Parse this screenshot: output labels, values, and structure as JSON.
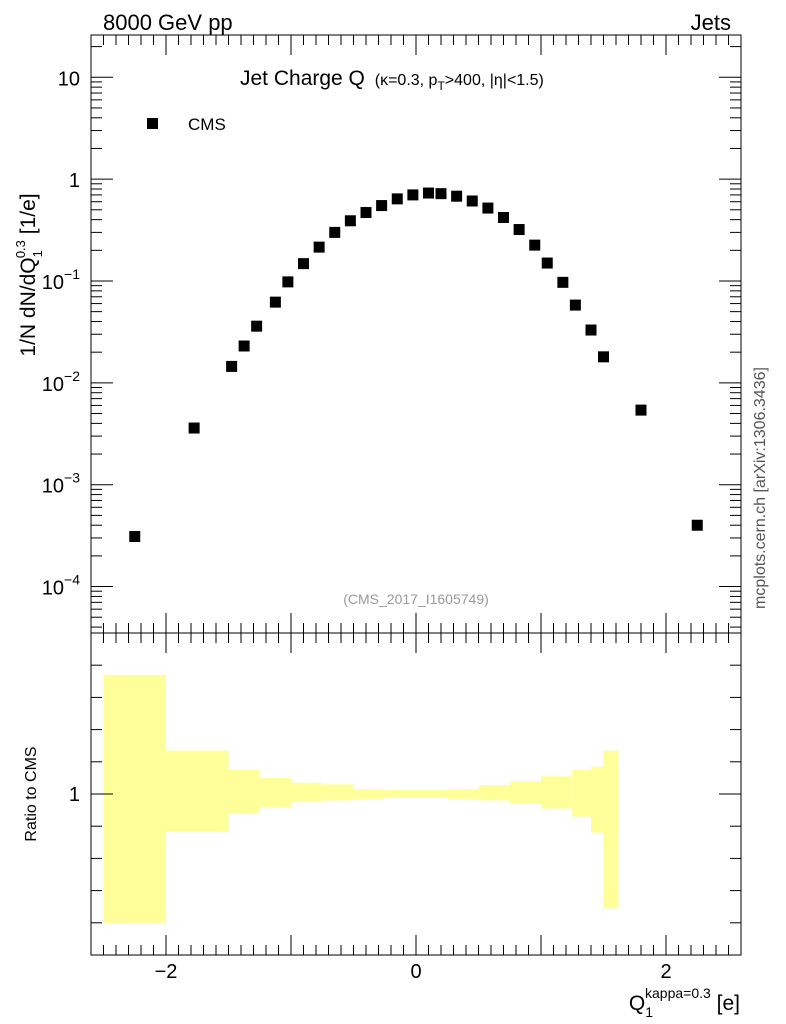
{
  "header": {
    "left": "8000 GeV pp",
    "right": "Jets"
  },
  "side_label": "mcplots.cern.ch [arXiv:1306.3436]",
  "analysis_id": "(CMS_2017_I1605749)",
  "chart_data": [
    {
      "type": "scatter",
      "title": "Jet Charge Q",
      "title_sub": "(κ=0.3, p",
      "title_sub2": "T",
      "title_sub3": ">400, |η|<1.5)",
      "ylabel": "1/N dN/dQ",
      "ylabel_sub": "1",
      "ylabel_sup": "0.3",
      "ylabel_unit": " [1/e]",
      "yscale": "log",
      "ylim": [
        3.5e-05,
        26
      ],
      "xlim": [
        -2.6,
        2.6
      ],
      "yticks": [
        {
          "v": 10,
          "b": "10",
          "e": ""
        },
        {
          "v": 1,
          "b": "1",
          "e": ""
        },
        {
          "v": 0.1,
          "b": "10",
          "e": "−1"
        },
        {
          "v": 0.01,
          "b": "10",
          "e": "−2"
        },
        {
          "v": 0.001,
          "b": "10",
          "e": "−3"
        },
        {
          "v": 0.0001,
          "b": "10",
          "e": "−4"
        }
      ],
      "legend_position": "top-left",
      "series": [
        {
          "name": "CMS",
          "color": "#000000",
          "x": [
            -2.25,
            -1.775,
            -1.475,
            -1.375,
            -1.275,
            -1.125,
            -1.025,
            -0.9,
            -0.775,
            -0.65,
            -0.525,
            -0.4,
            -0.275,
            -0.15,
            -0.025,
            0.1,
            0.2,
            0.325,
            0.45,
            0.575,
            0.7,
            0.825,
            0.95,
            1.05,
            1.175,
            1.275,
            1.4,
            1.5,
            1.8,
            2.25
          ],
          "y": [
            0.00031,
            0.0036,
            0.0145,
            0.023,
            0.036,
            0.062,
            0.098,
            0.148,
            0.215,
            0.3,
            0.39,
            0.47,
            0.55,
            0.64,
            0.7,
            0.73,
            0.72,
            0.68,
            0.61,
            0.52,
            0.42,
            0.32,
            0.225,
            0.15,
            0.097,
            0.058,
            0.033,
            0.018,
            0.0054,
            0.0004
          ]
        }
      ]
    },
    {
      "type": "area",
      "ylabel": "Ratio to CMS",
      "xlabel": "Q",
      "xlabel_sub": "1",
      "xlabel_sup": "kappa=0.3",
      "xlabel_unit": " [e]",
      "xlim": [
        -2.6,
        2.6
      ],
      "ylim": [
        0.5,
        1.5
      ],
      "yticks": [
        {
          "v": 1,
          "label": "1"
        }
      ],
      "xticks": [
        {
          "v": -2,
          "label": "−2"
        },
        {
          "v": 0,
          "label": "0"
        },
        {
          "v": 2,
          "label": "2"
        }
      ],
      "band_color": "#ffff99",
      "band": [
        {
          "x0": -2.5,
          "x1": -2.0,
          "lo": 0.6,
          "hi": 1.37
        },
        {
          "x0": -2.0,
          "x1": -1.5,
          "lo": 0.885,
          "hi": 1.135
        },
        {
          "x0": -1.5,
          "x1": -1.25,
          "lo": 0.94,
          "hi": 1.075
        },
        {
          "x0": -1.25,
          "x1": -1.0,
          "lo": 0.96,
          "hi": 1.05
        },
        {
          "x0": -1.0,
          "x1": -0.75,
          "lo": 0.975,
          "hi": 1.035
        },
        {
          "x0": -0.75,
          "x1": -0.5,
          "lo": 0.98,
          "hi": 1.03
        },
        {
          "x0": -0.5,
          "x1": -0.25,
          "lo": 0.985,
          "hi": 1.015
        },
        {
          "x0": -0.25,
          "x1": 0.25,
          "lo": 0.99,
          "hi": 1.012
        },
        {
          "x0": 0.25,
          "x1": 0.5,
          "lo": 0.985,
          "hi": 1.015
        },
        {
          "x0": 0.5,
          "x1": 0.75,
          "lo": 0.98,
          "hi": 1.028
        },
        {
          "x0": 0.75,
          "x1": 1.0,
          "lo": 0.972,
          "hi": 1.04
        },
        {
          "x0": 1.0,
          "x1": 1.25,
          "lo": 0.955,
          "hi": 1.055
        },
        {
          "x0": 1.25,
          "x1": 1.4,
          "lo": 0.93,
          "hi": 1.075
        },
        {
          "x0": 1.4,
          "x1": 1.5,
          "lo": 0.88,
          "hi": 1.085
        },
        {
          "x0": 1.5,
          "x1": 1.62,
          "lo": 0.645,
          "hi": 1.135
        }
      ]
    }
  ]
}
